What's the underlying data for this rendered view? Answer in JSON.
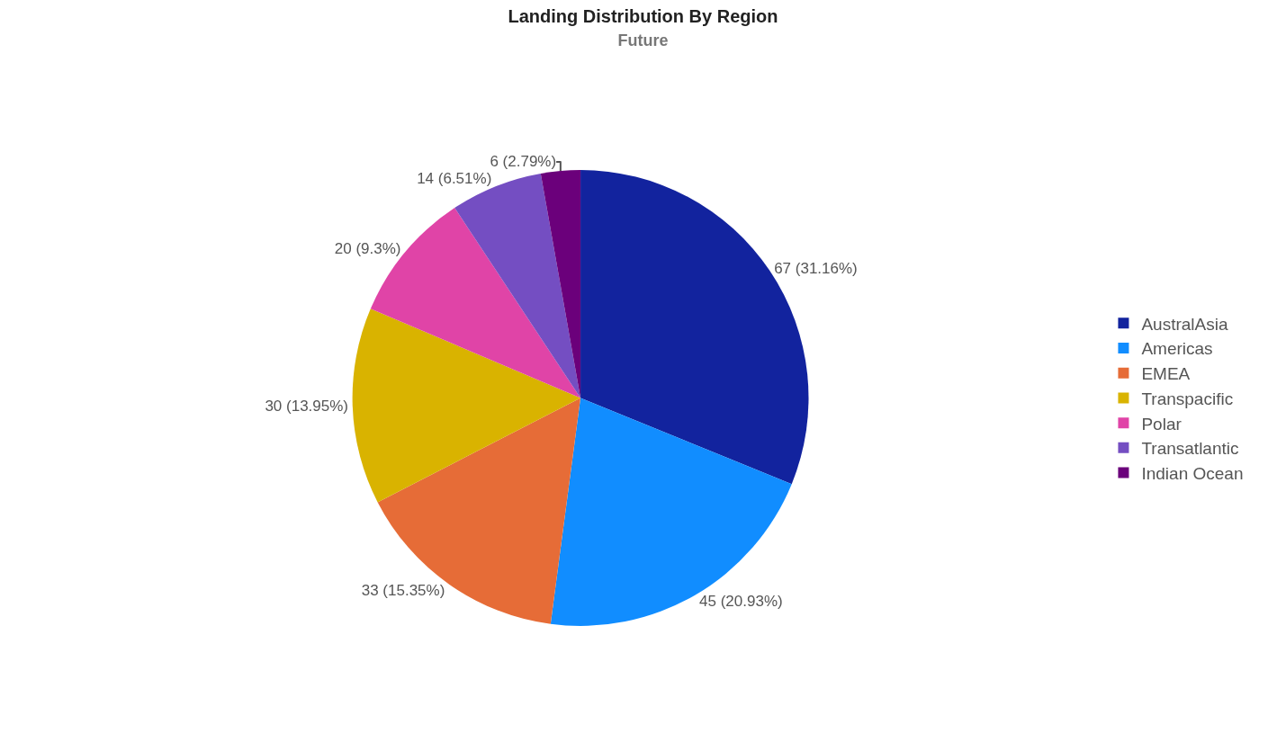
{
  "chart_data": {
    "type": "pie",
    "title": "Landing Distribution By Region",
    "subtitle": "Future",
    "categories": [
      "AustralAsia",
      "Americas",
      "EMEA",
      "Transpacific",
      "Polar",
      "Transatlantic",
      "Indian Ocean"
    ],
    "values": [
      67,
      45,
      33,
      30,
      20,
      14,
      6
    ],
    "colors": [
      "#12239e",
      "#118dff",
      "#e66c37",
      "#d9b300",
      "#e044a7",
      "#744ec2",
      "#6b007b"
    ],
    "value_labels": [
      "67 (31.16%)",
      "45 (20.93%)",
      "33 (15.35%)",
      "30 (13.95%)",
      "20 (9.3%)",
      "14 (6.51%)",
      "6 (2.79%)"
    ],
    "legend": "right"
  }
}
